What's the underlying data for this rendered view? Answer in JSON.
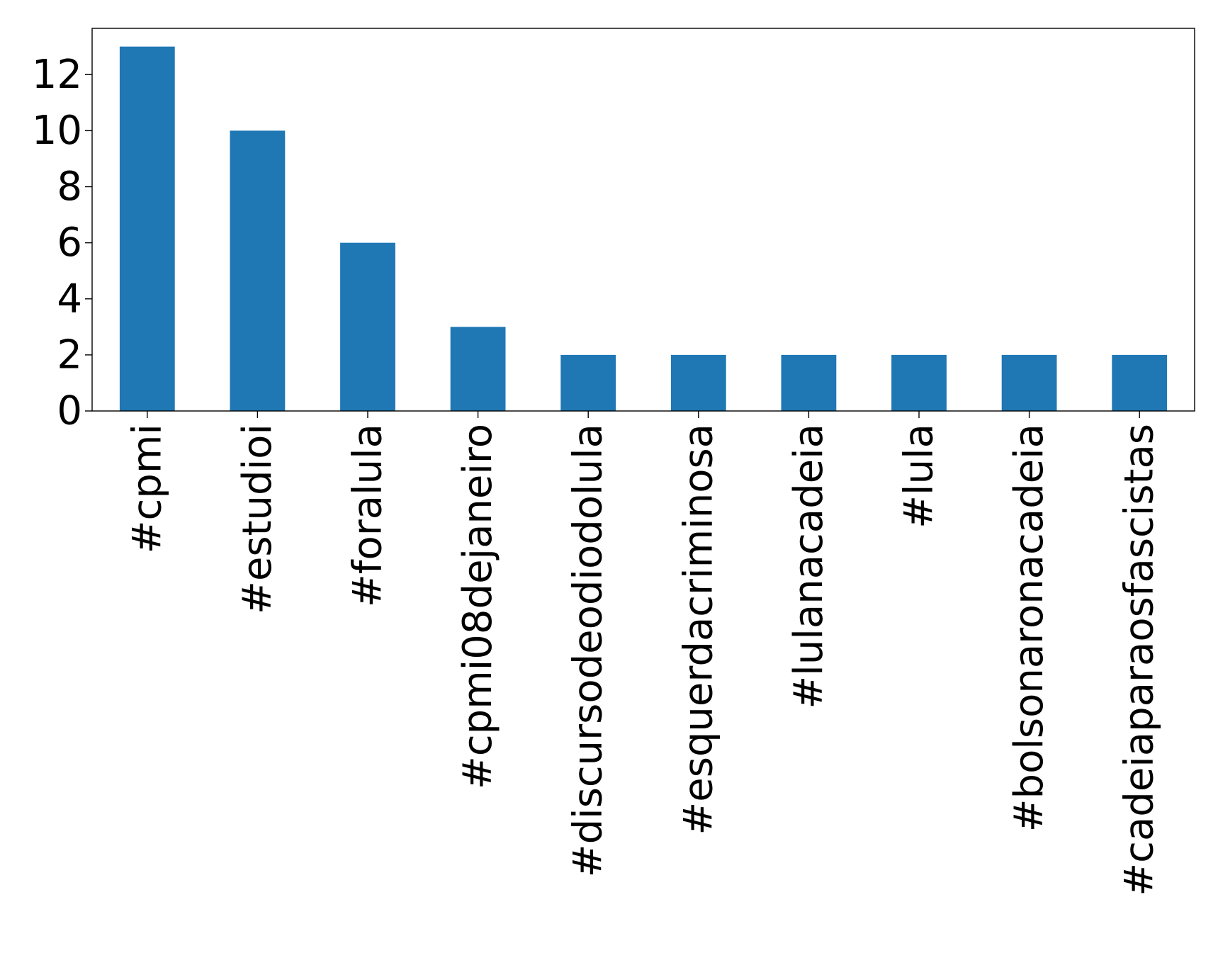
{
  "chart_data": {
    "type": "bar",
    "title": "",
    "xlabel": "",
    "ylabel": "",
    "categories": [
      "#cpmi",
      "#estudioi",
      "#foralula",
      "#cpmi08dejaneiro",
      "#discursodeodiodolula",
      "#esquerdacriminosa",
      "#lulanacadeia",
      "#lula",
      "#bolsonaronacadeia",
      "#cadeiaparaosfascistas"
    ],
    "values": [
      13,
      10,
      6,
      3,
      2,
      2,
      2,
      2,
      2,
      2
    ],
    "yticks": [
      0,
      2,
      4,
      6,
      8,
      10,
      12
    ],
    "ylim": [
      0,
      13.65
    ],
    "grid": false,
    "legend": "none",
    "bar_color": "#1f77b4"
  }
}
